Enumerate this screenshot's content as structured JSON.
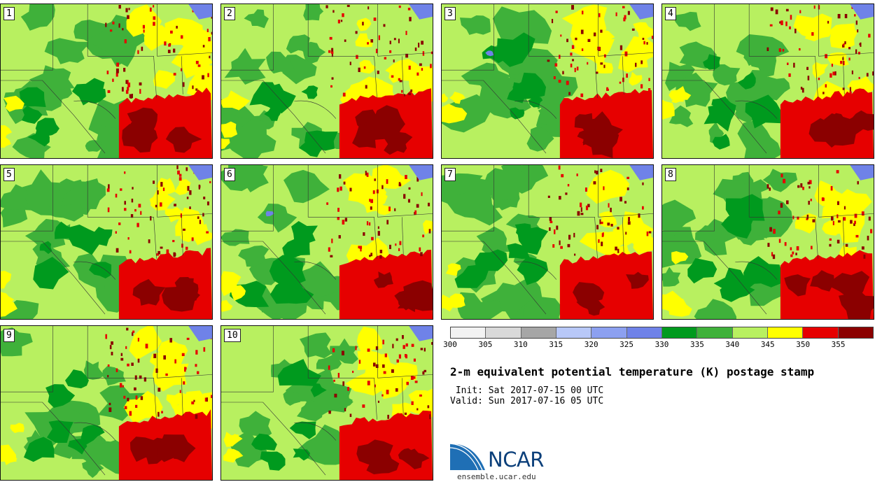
{
  "panels": [
    {
      "label": "1",
      "variant": 0
    },
    {
      "label": "2",
      "variant": 1
    },
    {
      "label": "3",
      "variant": 2
    },
    {
      "label": "4",
      "variant": 3
    },
    {
      "label": "5",
      "variant": 4
    },
    {
      "label": "6",
      "variant": 5
    },
    {
      "label": "7",
      "variant": 6
    },
    {
      "label": "8",
      "variant": 7
    },
    {
      "label": "9",
      "variant": 8
    },
    {
      "label": "10",
      "variant": 9
    }
  ],
  "colorbar": {
    "colors": [
      "#f2f2f2",
      "#d9d9d9",
      "#a6a6a6",
      "#b8c8f8",
      "#8ca0f0",
      "#6f82e8",
      "#009a1e",
      "#3fb13a",
      "#b8f060",
      "#ffff00",
      "#e60000",
      "#8b0000"
    ],
    "tick_labels": [
      "300",
      "305",
      "310",
      "315",
      "320",
      "325",
      "330",
      "335",
      "340",
      "345",
      "350",
      "355"
    ]
  },
  "title": "2-m equivalent potential temperature (K) postage stamp",
  "init": " Init: Sat 2017-07-15 00 UTC",
  "valid": "Valid: Sun 2017-07-16 05 UTC",
  "logo": {
    "text": "NCAR",
    "colors": {
      "blue": "#1f6fb5",
      "dark": "#0b3f7a"
    }
  },
  "site": "ensemble.ucar.edu"
}
